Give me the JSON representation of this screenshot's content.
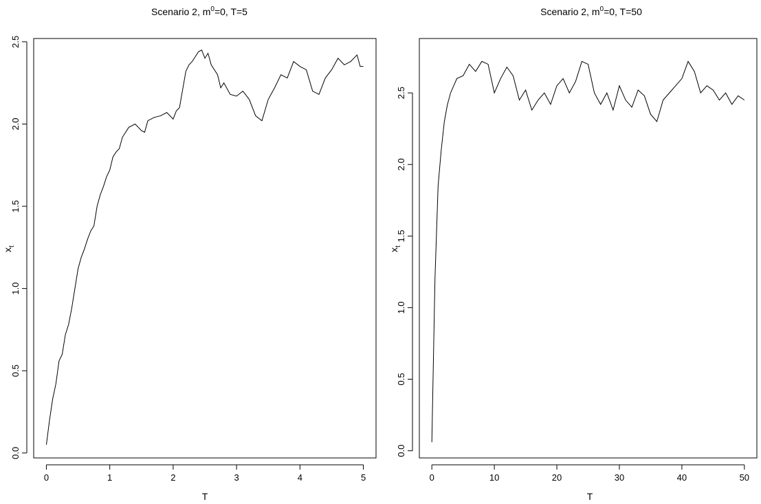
{
  "chart_data": [
    {
      "type": "line",
      "title": {
        "main": "Scenario 2, m",
        "sup": "0",
        "tail": "=0, T=5"
      },
      "xlabel": "T",
      "ylabel": {
        "main": "x",
        "sub": "t"
      },
      "xlim": [
        -0.2,
        5.2
      ],
      "ylim": [
        -0.03,
        2.52
      ],
      "xticks": [
        0,
        1,
        2,
        3,
        4,
        5
      ],
      "xtick_labels": [
        "0",
        "1",
        "2",
        "3",
        "4",
        "5"
      ],
      "yticks": [
        0.0,
        0.5,
        1.0,
        1.5,
        2.0,
        2.5
      ],
      "ytick_labels": [
        "0.0",
        "0.5",
        "1.0",
        "1.5",
        "2.0",
        "2.5"
      ],
      "grid": false,
      "series": [
        {
          "x": [
            0,
            0.05,
            0.1,
            0.15,
            0.2,
            0.25,
            0.3,
            0.35,
            0.4,
            0.45,
            0.5,
            0.55,
            0.6,
            0.65,
            0.7,
            0.75,
            0.8,
            0.85,
            0.9,
            0.95,
            1.0,
            1.05,
            1.1,
            1.15,
            1.2,
            1.3,
            1.4,
            1.5,
            1.55,
            1.6,
            1.7,
            1.8,
            1.9,
            2.0,
            2.05,
            2.1,
            2.2,
            2.25,
            2.3,
            2.4,
            2.45,
            2.5,
            2.55,
            2.6,
            2.7,
            2.75,
            2.8,
            2.9,
            3.0,
            3.1,
            3.2,
            3.3,
            3.4,
            3.5,
            3.6,
            3.7,
            3.8,
            3.9,
            4.0,
            4.1,
            4.2,
            4.3,
            4.4,
            4.5,
            4.6,
            4.7,
            4.8,
            4.9,
            4.95,
            5.0
          ],
          "y": [
            0.05,
            0.2,
            0.33,
            0.42,
            0.56,
            0.6,
            0.72,
            0.78,
            0.88,
            1.0,
            1.12,
            1.19,
            1.24,
            1.3,
            1.35,
            1.38,
            1.5,
            1.57,
            1.62,
            1.68,
            1.72,
            1.8,
            1.83,
            1.85,
            1.92,
            1.98,
            2.0,
            1.96,
            1.95,
            2.02,
            2.04,
            2.05,
            2.07,
            2.03,
            2.08,
            2.1,
            2.32,
            2.36,
            2.38,
            2.44,
            2.45,
            2.4,
            2.43,
            2.36,
            2.3,
            2.22,
            2.25,
            2.18,
            2.17,
            2.2,
            2.15,
            2.05,
            2.02,
            2.15,
            2.22,
            2.3,
            2.28,
            2.38,
            2.35,
            2.33,
            2.2,
            2.18,
            2.28,
            2.33,
            2.4,
            2.36,
            2.38,
            2.42,
            2.35,
            2.35
          ]
        }
      ]
    },
    {
      "type": "line",
      "title": {
        "main": "Scenario 2, m",
        "sup": "0",
        "tail": "=0, T=50"
      },
      "xlabel": "T",
      "ylabel": {
        "main": "x",
        "sub": "t"
      },
      "xlim": [
        -2,
        52
      ],
      "ylim": [
        -0.05,
        2.88
      ],
      "xticks": [
        0,
        10,
        20,
        30,
        40,
        50
      ],
      "xtick_labels": [
        "0",
        "10",
        "20",
        "30",
        "40",
        "50"
      ],
      "yticks": [
        0.0,
        0.5,
        1.0,
        1.5,
        2.0,
        2.5
      ],
      "ytick_labels": [
        "0.0",
        "0.5",
        "1.0",
        "1.5",
        "2.0",
        "2.5"
      ],
      "grid": false,
      "series": [
        {
          "x": [
            0,
            0.5,
            1,
            1.5,
            2,
            2.5,
            3,
            3.5,
            4,
            5,
            6,
            7,
            8,
            9,
            10,
            11,
            12,
            13,
            14,
            15,
            16,
            17,
            18,
            19,
            20,
            21,
            22,
            23,
            24,
            25,
            26,
            27,
            28,
            29,
            30,
            31,
            32,
            33,
            34,
            35,
            36,
            37,
            38,
            39,
            40,
            41,
            42,
            43,
            44,
            45,
            46,
            47,
            48,
            49,
            50
          ],
          "y": [
            0.06,
            1.2,
            1.85,
            2.1,
            2.3,
            2.42,
            2.5,
            2.55,
            2.6,
            2.62,
            2.7,
            2.65,
            2.72,
            2.7,
            2.5,
            2.6,
            2.68,
            2.62,
            2.45,
            2.52,
            2.38,
            2.45,
            2.5,
            2.42,
            2.55,
            2.6,
            2.5,
            2.58,
            2.72,
            2.7,
            2.5,
            2.42,
            2.5,
            2.38,
            2.55,
            2.45,
            2.4,
            2.52,
            2.48,
            2.35,
            2.3,
            2.45,
            2.5,
            2.55,
            2.6,
            2.72,
            2.65,
            2.5,
            2.55,
            2.52,
            2.45,
            2.5,
            2.42,
            2.48,
            2.45
          ]
        }
      ]
    }
  ]
}
